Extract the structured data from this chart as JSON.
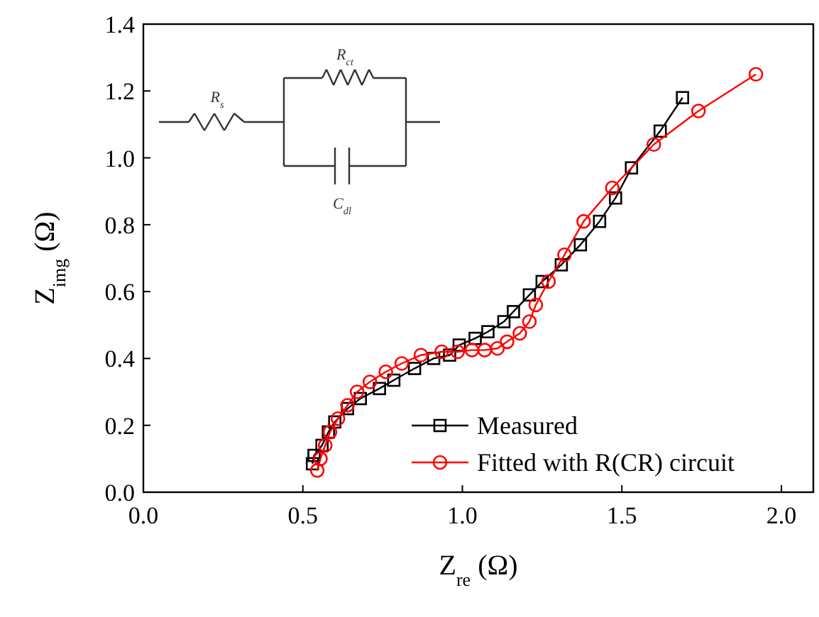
{
  "chart_data": {
    "type": "line",
    "xlabel": "Z$_{re}$ (Ω)",
    "ylabel": "Z$_{img}$ (Ω)",
    "xlim": [
      0,
      2.1
    ],
    "ylim": [
      0,
      1.4
    ],
    "xticks": [
      {
        "value": 0,
        "label": "0.0"
      },
      {
        "value": 0.5,
        "label": "0.5"
      },
      {
        "value": 1,
        "label": "1.0"
      },
      {
        "value": 1.5,
        "label": "1.5"
      },
      {
        "value": 2,
        "label": "2.0"
      }
    ],
    "yticks": [
      {
        "value": 0,
        "label": "0.0"
      },
      0.2,
      0.4,
      0.6,
      0.8,
      {
        "value": 1,
        "label": "1.0"
      },
      1.2,
      1.4
    ],
    "legend": "bottom right",
    "annotations": [
      "R$_{s}$",
      "R$_{ct}$",
      "C$_{dl}$"
    ],
    "series": [
      {
        "name": "Measured",
        "color": "#000000",
        "marker": "square",
        "x": [
          0.53,
          0.535,
          0.56,
          0.58,
          0.6,
          0.64,
          0.68,
          0.74,
          0.785,
          0.85,
          0.91,
          0.96,
          0.99,
          1.04,
          1.08,
          1.13,
          1.16,
          1.21,
          1.25,
          1.31,
          1.37,
          1.43,
          1.48,
          1.53,
          1.62,
          1.69
        ],
        "values": [
          0.085,
          0.11,
          0.14,
          0.18,
          0.21,
          0.25,
          0.28,
          0.31,
          0.335,
          0.37,
          0.4,
          0.41,
          0.44,
          0.46,
          0.48,
          0.51,
          0.54,
          0.59,
          0.63,
          0.68,
          0.74,
          0.81,
          0.88,
          0.97,
          1.08,
          1.18
        ]
      },
      {
        "name": "Fitted with R(CR) circuit",
        "color": "#ff0000",
        "marker": "circle",
        "x": [
          0.545,
          0.555,
          0.57,
          0.585,
          0.61,
          0.64,
          0.67,
          0.71,
          0.76,
          0.81,
          0.87,
          0.935,
          0.985,
          1.03,
          1.07,
          1.11,
          1.14,
          1.18,
          1.21,
          1.23,
          1.27,
          1.32,
          1.38,
          1.47,
          1.6,
          1.74,
          1.92
        ],
        "values": [
          0.065,
          0.1,
          0.14,
          0.18,
          0.22,
          0.26,
          0.3,
          0.33,
          0.36,
          0.385,
          0.41,
          0.42,
          0.42,
          0.425,
          0.425,
          0.43,
          0.45,
          0.475,
          0.51,
          0.56,
          0.63,
          0.71,
          0.81,
          0.91,
          1.04,
          1.14,
          1.25
        ]
      }
    ]
  }
}
